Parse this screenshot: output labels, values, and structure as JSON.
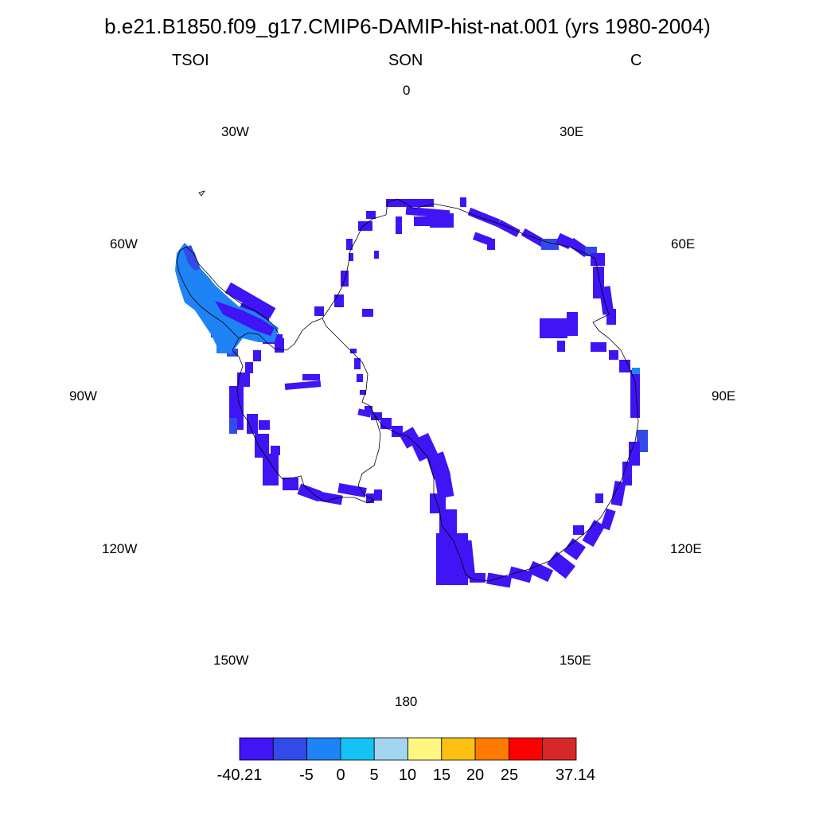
{
  "title": "b.e21.B1850.f09_g17.CMIP6-DAMIP-hist-nat.001 (yrs 1980-2004)",
  "header": {
    "left": "TSOI",
    "center": "SON",
    "right": "C"
  },
  "longitude_labels": [
    "0",
    "30E",
    "60E",
    "90E",
    "120E",
    "150E",
    "180",
    "150W",
    "120W",
    "90W",
    "60W",
    "30W"
  ],
  "colorbar": {
    "colors": [
      "#3f14f5",
      "#324ae8",
      "#1e84f5",
      "#14c2f5",
      "#a2d5f0",
      "#fff782",
      "#ffc014",
      "#ff7a00",
      "#ff0000",
      "#d62828"
    ],
    "labels": [
      "-40.21",
      "-5",
      "0",
      "5",
      "10",
      "15",
      "20",
      "25",
      "37.14"
    ]
  },
  "chart_data": {
    "type": "heatmap",
    "projection": "south polar stereographic",
    "variable": "TSOI",
    "season": "SON",
    "units": "C",
    "value_range": [
      -40.21,
      37.14
    ],
    "contour_levels": [
      -5,
      0,
      5,
      10,
      15,
      20,
      25
    ],
    "field_description": "Coastal Antarctic grid cells shaded in the lowest bins (mostly below -5 C); Antarctic Peninsula cells between -5 and 5 C"
  },
  "colors": {
    "coast": "#000000",
    "background": "#ffffff"
  }
}
